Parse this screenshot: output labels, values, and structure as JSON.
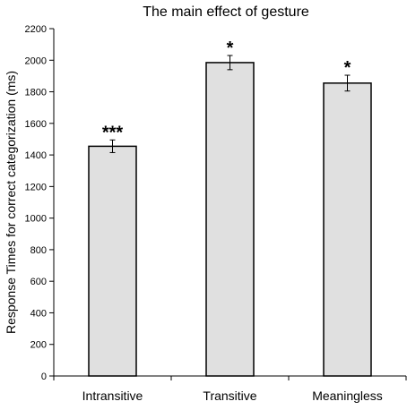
{
  "chart_data": {
    "type": "bar",
    "title": "The main effect of gesture",
    "xlabel": "",
    "ylabel": "Response Times for correct categorization (ms)",
    "categories": [
      "Intransitive",
      "Transitive",
      "Meaningless"
    ],
    "values": [
      1455,
      1985,
      1855
    ],
    "errors": [
      40,
      45,
      50
    ],
    "significance": [
      "***",
      "*",
      "*"
    ],
    "ylim": [
      0,
      2200
    ],
    "yticks": [
      "0",
      "200",
      "400",
      "600",
      "800",
      "1000",
      "1200",
      "1400",
      "1600",
      "1800",
      "2000",
      "2200"
    ],
    "grid": false,
    "legend": "none",
    "colors": {
      "bar_fill": "#e0e0e0",
      "bar_stroke": "#000000"
    }
  }
}
